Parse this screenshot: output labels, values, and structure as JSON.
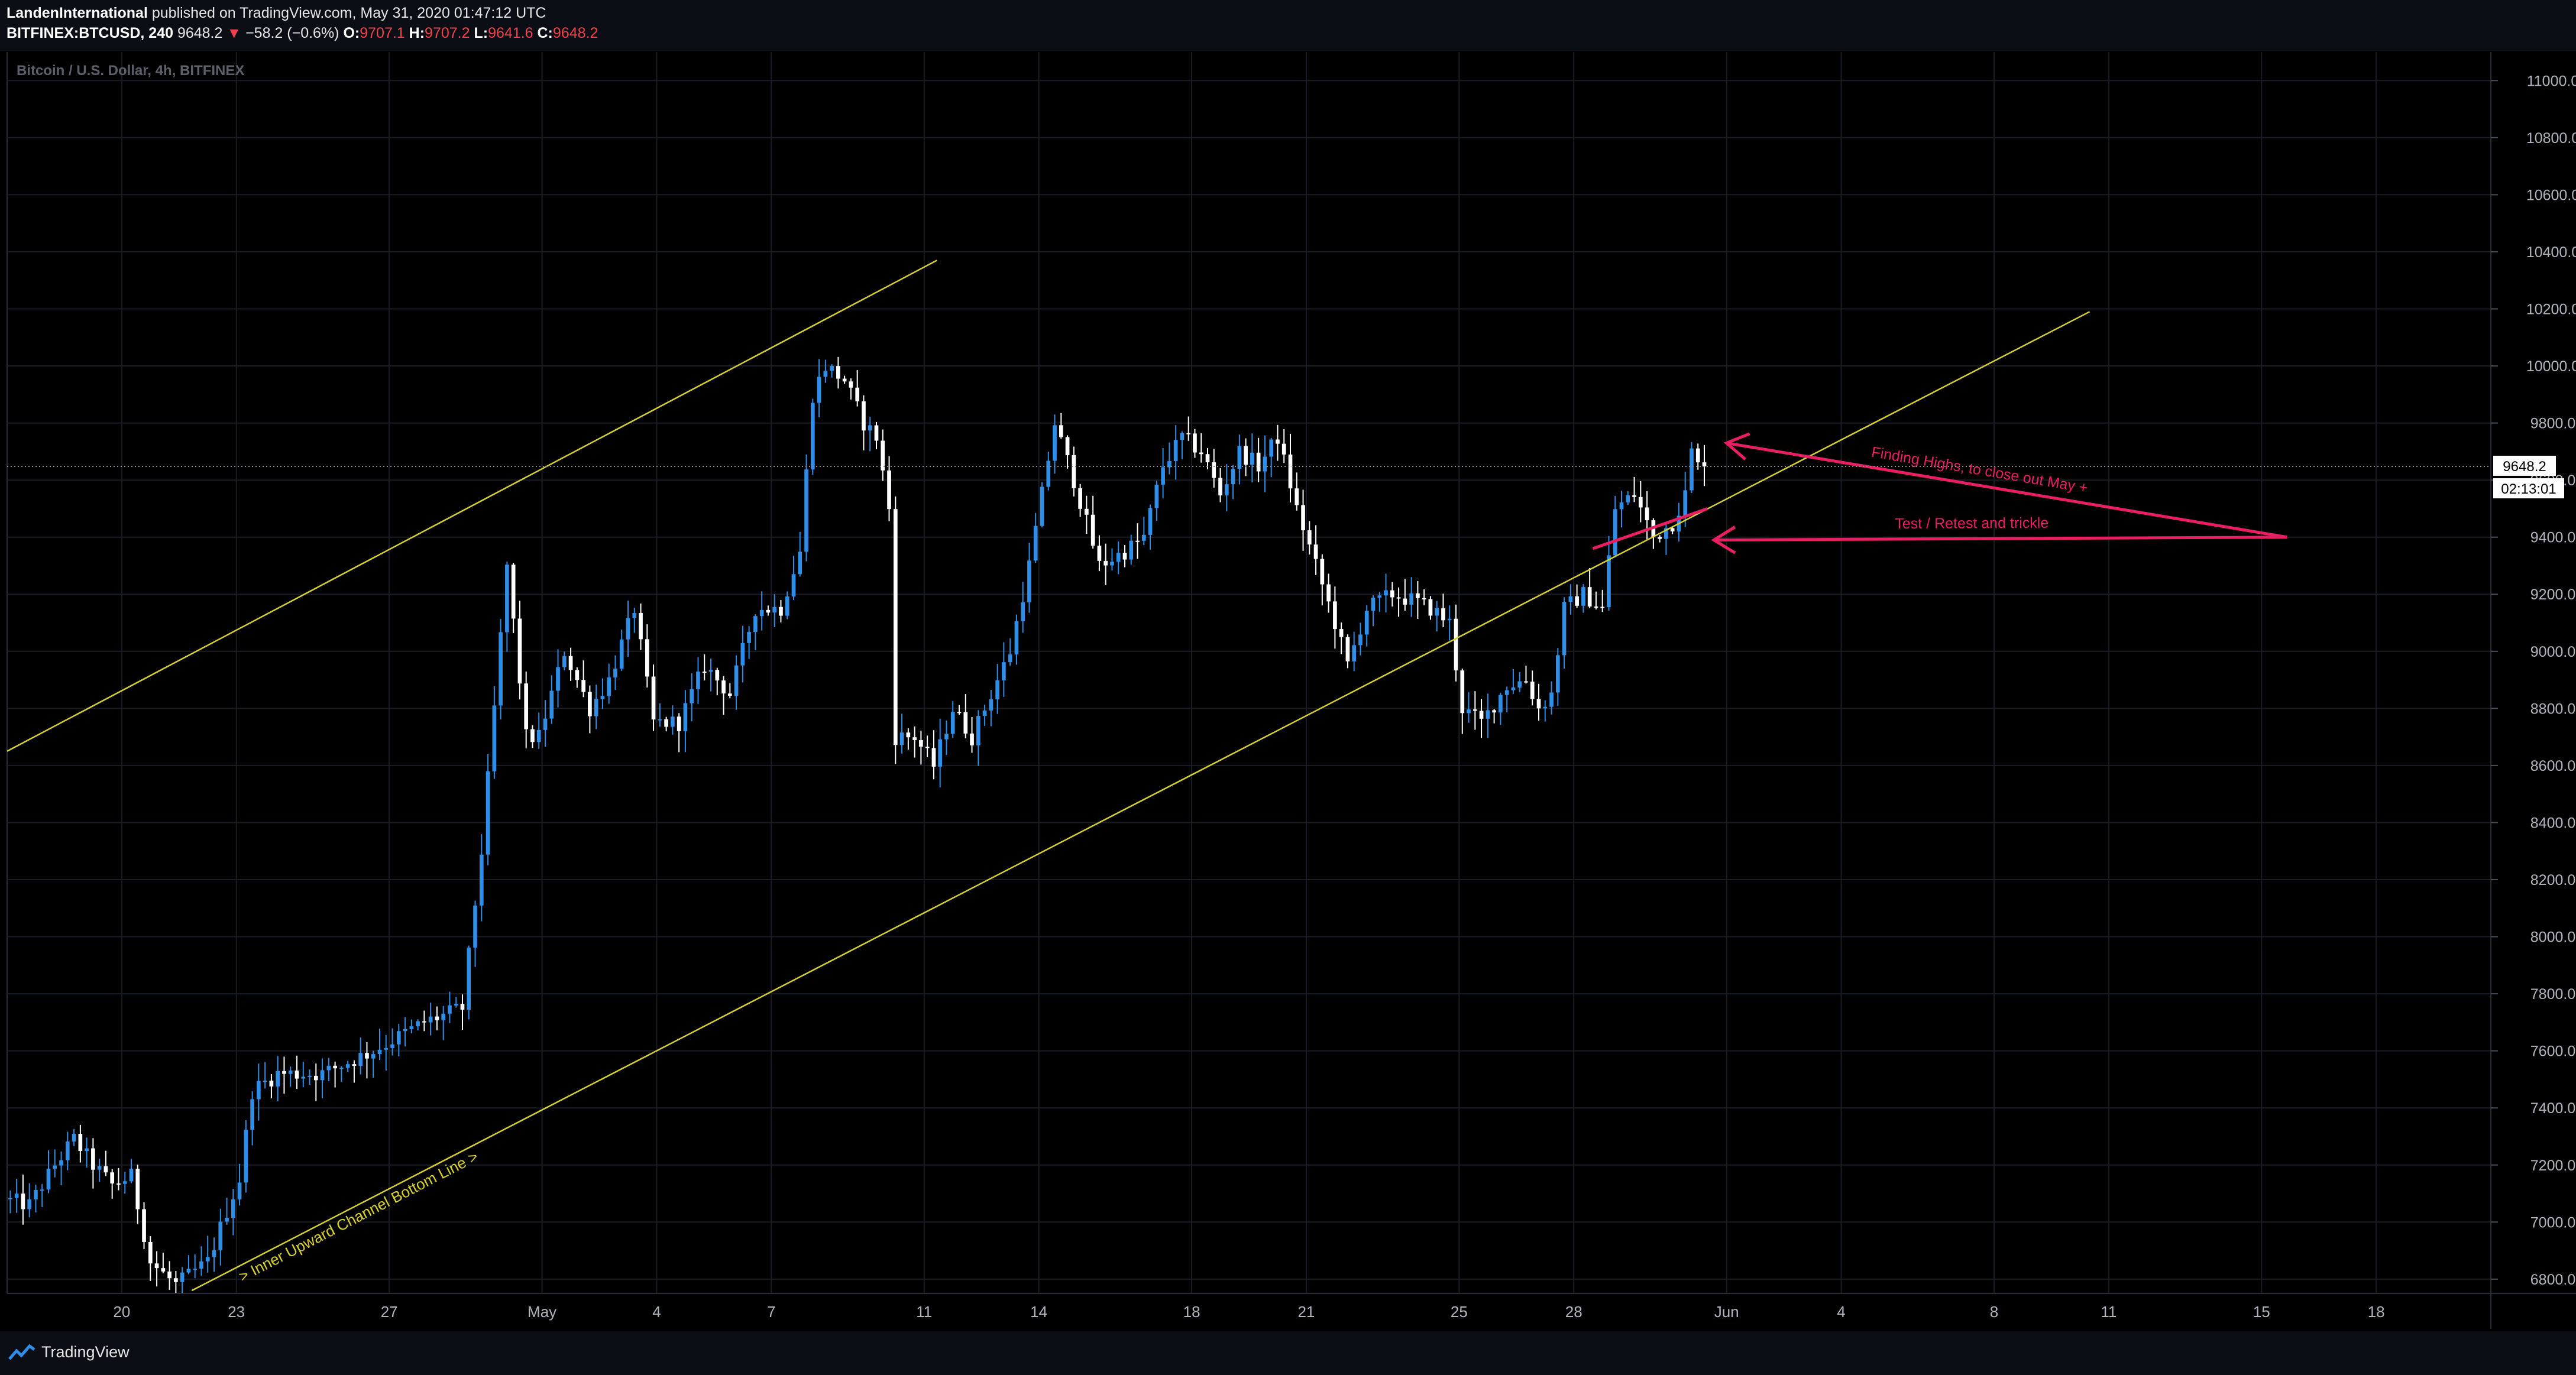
{
  "header": {
    "author": "LandenInternational",
    "published": "published on TradingView.com, May 31, 2020 01:47:12 UTC",
    "symbol": "BITFINEX:BTCUSD, 240",
    "last_price": "9648.2",
    "change_arrow": "▼",
    "change": "−58.2 (−0.6%)",
    "o_label": "O:",
    "o_value": "9707.1",
    "h_label": "H:",
    "h_value": "9707.2",
    "l_label": "L:",
    "l_value": "9641.6",
    "c_label": "C:",
    "c_value": "9648.2"
  },
  "footer": {
    "brand": "TradingView"
  },
  "colors": {
    "background": "#000000",
    "up_candle": "#2f8ee8",
    "down_candle": "#ffffff",
    "channel_line": "#d8d02c",
    "annotation": "#e91e63",
    "grid": "#1a1d26"
  },
  "chart_data": {
    "type": "candlestick",
    "title": "Bitcoin / U.S. Dollar, 4h, BITFINEX",
    "timeframe": "4h",
    "x_range": [
      "2020-04-17 00:00",
      "2020-06-21 00:00"
    ],
    "ylim": [
      6750,
      11100
    ],
    "y_ticks": [
      6800,
      7000,
      7200,
      7400,
      7600,
      7800,
      8000,
      8200,
      8400,
      8600,
      8800,
      9000,
      9200,
      9400,
      9600,
      9800,
      10000,
      10200,
      10400,
      10600,
      10800,
      11000
    ],
    "y_tick_labels": [
      "6800.0",
      "7000.0",
      "7200.0",
      "7400.0",
      "7600.0",
      "7800.0",
      "8000.0",
      "8200.0",
      "8400.0",
      "8600.0",
      "8800.0",
      "9000.0",
      "9200.0",
      "9400.0",
      "9600.0",
      "9800.0",
      "10000.0",
      "10200.0",
      "10400.0",
      "10600.0",
      "10800.0",
      "11000.0"
    ],
    "x_ticks": [
      {
        "label": "20",
        "date": "2020-04-20"
      },
      {
        "label": "23",
        "date": "2020-04-23"
      },
      {
        "label": "27",
        "date": "2020-04-27"
      },
      {
        "label": "May",
        "date": "2020-05-01"
      },
      {
        "label": "4",
        "date": "2020-05-04"
      },
      {
        "label": "7",
        "date": "2020-05-07"
      },
      {
        "label": "11",
        "date": "2020-05-11"
      },
      {
        "label": "14",
        "date": "2020-05-14"
      },
      {
        "label": "18",
        "date": "2020-05-18"
      },
      {
        "label": "21",
        "date": "2020-05-21"
      },
      {
        "label": "25",
        "date": "2020-05-25"
      },
      {
        "label": "28",
        "date": "2020-05-28"
      },
      {
        "label": "Jun",
        "date": "2020-06-01"
      },
      {
        "label": "4",
        "date": "2020-06-04"
      },
      {
        "label": "8",
        "date": "2020-06-08"
      },
      {
        "label": "11",
        "date": "2020-06-11"
      },
      {
        "label": "15",
        "date": "2020-06-15"
      },
      {
        "label": "18",
        "date": "2020-06-18"
      }
    ],
    "price_path": [
      [
        "2020-04-17 00:00",
        7080
      ],
      [
        "2020-04-17 16:00",
        7060
      ],
      [
        "2020-04-18 08:00",
        7200
      ],
      [
        "2020-04-18 20:00",
        7290
      ],
      [
        "2020-04-19 08:00",
        7200
      ],
      [
        "2020-04-19 20:00",
        7130
      ],
      [
        "2020-04-20 08:00",
        7160
      ],
      [
        "2020-04-20 20:00",
        6860
      ],
      [
        "2020-04-21 12:00",
        6780
      ],
      [
        "2020-04-22 08:00",
        6860
      ],
      [
        "2020-04-22 20:00",
        7040
      ],
      [
        "2020-04-23 04:00",
        7150
      ],
      [
        "2020-04-23 12:00",
        7460
      ],
      [
        "2020-04-24 04:00",
        7520
      ],
      [
        "2020-04-25 08:00",
        7520
      ],
      [
        "2020-04-26 16:00",
        7600
      ],
      [
        "2020-04-28 00:00",
        7700
      ],
      [
        "2020-04-29 00:00",
        7750
      ],
      [
        "2020-04-29 12:00",
        8300
      ],
      [
        "2020-04-29 20:00",
        8800
      ],
      [
        "2020-04-30 04:00",
        9300
      ],
      [
        "2020-04-30 16:00",
        8700
      ],
      [
        "2020-05-01 00:00",
        8700
      ],
      [
        "2020-05-01 16:00",
        9000
      ],
      [
        "2020-05-02 08:00",
        8800
      ],
      [
        "2020-05-02 20:00",
        8900
      ],
      [
        "2020-05-03 12:00",
        9150
      ],
      [
        "2020-05-04 00:00",
        8750
      ],
      [
        "2020-05-04 16:00",
        8750
      ],
      [
        "2020-05-05 08:00",
        8950
      ],
      [
        "2020-05-06 00:00",
        8850
      ],
      [
        "2020-05-06 16:00",
        9150
      ],
      [
        "2020-05-07 08:00",
        9150
      ],
      [
        "2020-05-07 20:00",
        9350
      ],
      [
        "2020-05-08 04:00",
        9900
      ],
      [
        "2020-05-08 12:00",
        10000
      ],
      [
        "2020-05-09 00:00",
        9950
      ],
      [
        "2020-05-09 12:00",
        9800
      ],
      [
        "2020-05-09 20:00",
        9750
      ],
      [
        "2020-05-10 04:00",
        9500
      ],
      [
        "2020-05-10 08:00",
        8700
      ],
      [
        "2020-05-10 20:00",
        8700
      ],
      [
        "2020-05-11 08:00",
        8600
      ],
      [
        "2020-05-11 20:00",
        8800
      ],
      [
        "2020-05-12 08:00",
        8700
      ],
      [
        "2020-05-12 20:00",
        8850
      ],
      [
        "2020-05-13 08:00",
        9000
      ],
      [
        "2020-05-13 20:00",
        9300
      ],
      [
        "2020-05-14 12:00",
        9800
      ],
      [
        "2020-05-15 00:00",
        9600
      ],
      [
        "2020-05-15 16:00",
        9300
      ],
      [
        "2020-05-16 08:00",
        9350
      ],
      [
        "2020-05-16 20:00",
        9400
      ],
      [
        "2020-05-17 08:00",
        9650
      ],
      [
        "2020-05-17 20:00",
        9750
      ],
      [
        "2020-05-18 08:00",
        9700
      ],
      [
        "2020-05-18 20:00",
        9550
      ],
      [
        "2020-05-19 08:00",
        9700
      ],
      [
        "2020-05-19 20:00",
        9650
      ],
      [
        "2020-05-20 08:00",
        9750
      ],
      [
        "2020-05-20 20:00",
        9500
      ],
      [
        "2020-05-21 08:00",
        9300
      ],
      [
        "2020-05-21 20:00",
        9100
      ],
      [
        "2020-05-22 04:00",
        8950
      ],
      [
        "2020-05-22 16:00",
        9150
      ],
      [
        "2020-05-23 08:00",
        9200
      ],
      [
        "2020-05-23 20:00",
        9180
      ],
      [
        "2020-05-24 08:00",
        9150
      ],
      [
        "2020-05-24 20:00",
        9100
      ],
      [
        "2020-05-25 04:00",
        8800
      ],
      [
        "2020-05-25 16:00",
        8750
      ],
      [
        "2020-05-26 08:00",
        8880
      ],
      [
        "2020-05-26 20:00",
        8900
      ],
      [
        "2020-05-27 04:00",
        8800
      ],
      [
        "2020-05-27 12:00",
        8850
      ],
      [
        "2020-05-27 20:00",
        9150
      ],
      [
        "2020-05-28 08:00",
        9200
      ],
      [
        "2020-05-28 20:00",
        9150
      ],
      [
        "2020-05-29 04:00",
        9500
      ],
      [
        "2020-05-29 16:00",
        9550
      ],
      [
        "2020-05-30 04:00",
        9400
      ],
      [
        "2020-05-30 16:00",
        9450
      ],
      [
        "2020-05-31 00:00",
        9550
      ],
      [
        "2020-05-31 04:00",
        9700
      ],
      [
        "2020-05-31 08:00",
        9648
      ]
    ],
    "last_price_label": "9648.2",
    "countdown_label": "02:13:01",
    "trendlines": [
      {
        "name": "outer-channel-top",
        "from": [
          "2020-04-17 00:00",
          8650
        ],
        "to": [
          "2020-05-11 08:00",
          10370
        ]
      },
      {
        "name": "inner-channel-bottom",
        "from": [
          "2020-04-21 20:00",
          6760
        ],
        "to": [
          "2020-06-10 12:00",
          10190
        ]
      }
    ],
    "channel_label": "> Inner Upward Channel Bottom Line >",
    "annotations": [
      {
        "text": "Finding Highs, to close out May +",
        "arrow_tip": [
          "2020-06-01 00:00",
          9730
        ],
        "arrow_tail": [
          "2020-06-15 16:00",
          9400
        ]
      },
      {
        "text": "Test / Retest and trickle",
        "arrow_tip": [
          "2020-05-31 16:00",
          9390
        ],
        "arrow_tail": [
          "2020-06-15 16:00",
          9400
        ]
      }
    ],
    "highlight_segment": {
      "from": [
        "2020-05-28 12:00",
        9360
      ],
      "to": [
        "2020-05-31 12:00",
        9500
      ]
    }
  }
}
